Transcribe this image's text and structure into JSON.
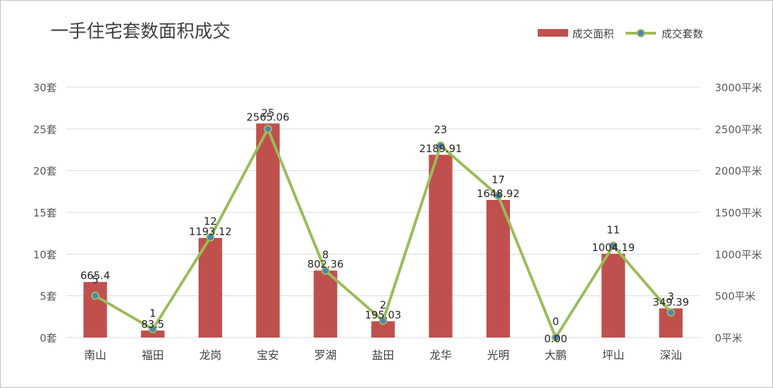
{
  "chart_data": {
    "type": "bar",
    "title": "一手住宅套数面积成交",
    "categories": [
      "南山",
      "福田",
      "龙岗",
      "宝安",
      "罗湖",
      "盐田",
      "龙华",
      "光明",
      "大鹏",
      "坪山",
      "深汕"
    ],
    "series": [
      {
        "name": "成交面积",
        "type": "bar",
        "axis": "right",
        "values": [
          665.4,
          83.5,
          1193.12,
          2565.06,
          802.36,
          195.03,
          2189.91,
          1648.92,
          0.0,
          1004.19,
          349.39
        ],
        "labels": [
          "665.4",
          "83.5",
          "1193.12",
          "2565.06",
          "802.36",
          "195.03",
          "2189.91",
          "1648.92",
          "0.00",
          "1004.19",
          "349.39"
        ],
        "color": "#c0504d"
      },
      {
        "name": "成交套数",
        "type": "line",
        "axis": "left",
        "values": [
          5,
          1,
          12,
          25,
          8,
          2,
          23,
          17,
          0,
          11,
          3
        ],
        "labels": [
          "5",
          "1",
          "12",
          "25",
          "8",
          "2",
          "23",
          "17",
          "0",
          "11",
          "3"
        ],
        "color": "#9bbb59",
        "marker_color": "#4f81bd"
      }
    ],
    "left_axis": {
      "ylim": [
        0,
        30
      ],
      "ticks": [
        "0套",
        "5套",
        "10套",
        "15套",
        "20套",
        "25套",
        "30套"
      ]
    },
    "right_axis": {
      "ylim": [
        0,
        3000
      ],
      "ticks": [
        "0平米",
        "500平米",
        "1000平米",
        "1500平米",
        "2000平米",
        "2500平米",
        "3000平米"
      ]
    },
    "grid": true,
    "legend_position": "top-right"
  }
}
